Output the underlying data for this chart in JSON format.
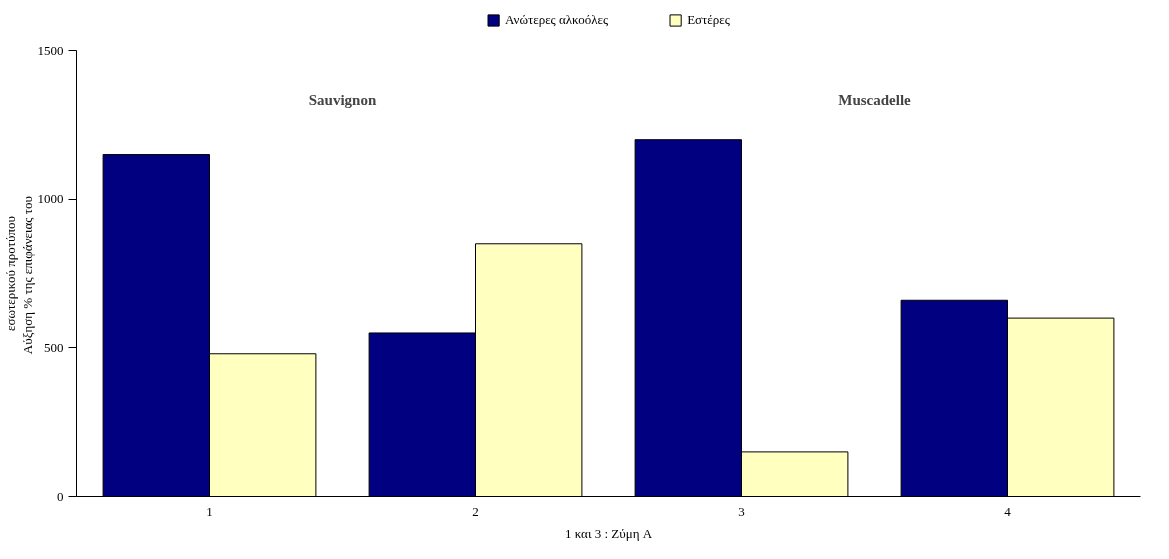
{
  "chart_data": {
    "type": "bar",
    "ylabel": "Αύξηση  % της επιφάνειας του\nεσωτερικού προτύπου",
    "categories": [
      "1",
      "2",
      "3",
      "4"
    ],
    "series": [
      {
        "name": "Ανώτερες αλκοόλες",
        "color": "#000080",
        "values": [
          1150,
          550,
          1200,
          660
        ]
      },
      {
        "name": "Εστέρες",
        "color": "#ffffc0",
        "values": [
          480,
          850,
          150,
          600
        ]
      }
    ],
    "ylim": [
      0,
      1500
    ],
    "yticks": [
      0,
      500,
      1000,
      1500
    ],
    "grid": false,
    "legend": "top",
    "annotations": [
      "Sauvignon",
      "Muscadelle",
      "1 και 3 : Ζύμη A"
    ]
  }
}
